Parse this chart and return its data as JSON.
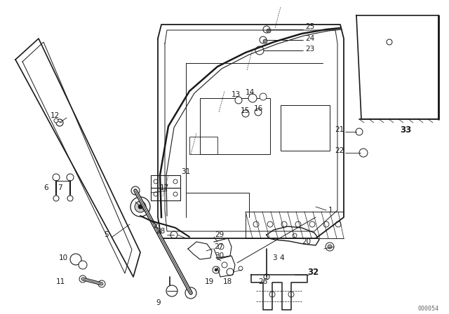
{
  "bg_color": "#ffffff",
  "line_color": "#1a1a1a",
  "text_color": "#1a1a1a",
  "watermark": "000054",
  "figsize": [
    6.4,
    4.48
  ],
  "dpi": 100
}
